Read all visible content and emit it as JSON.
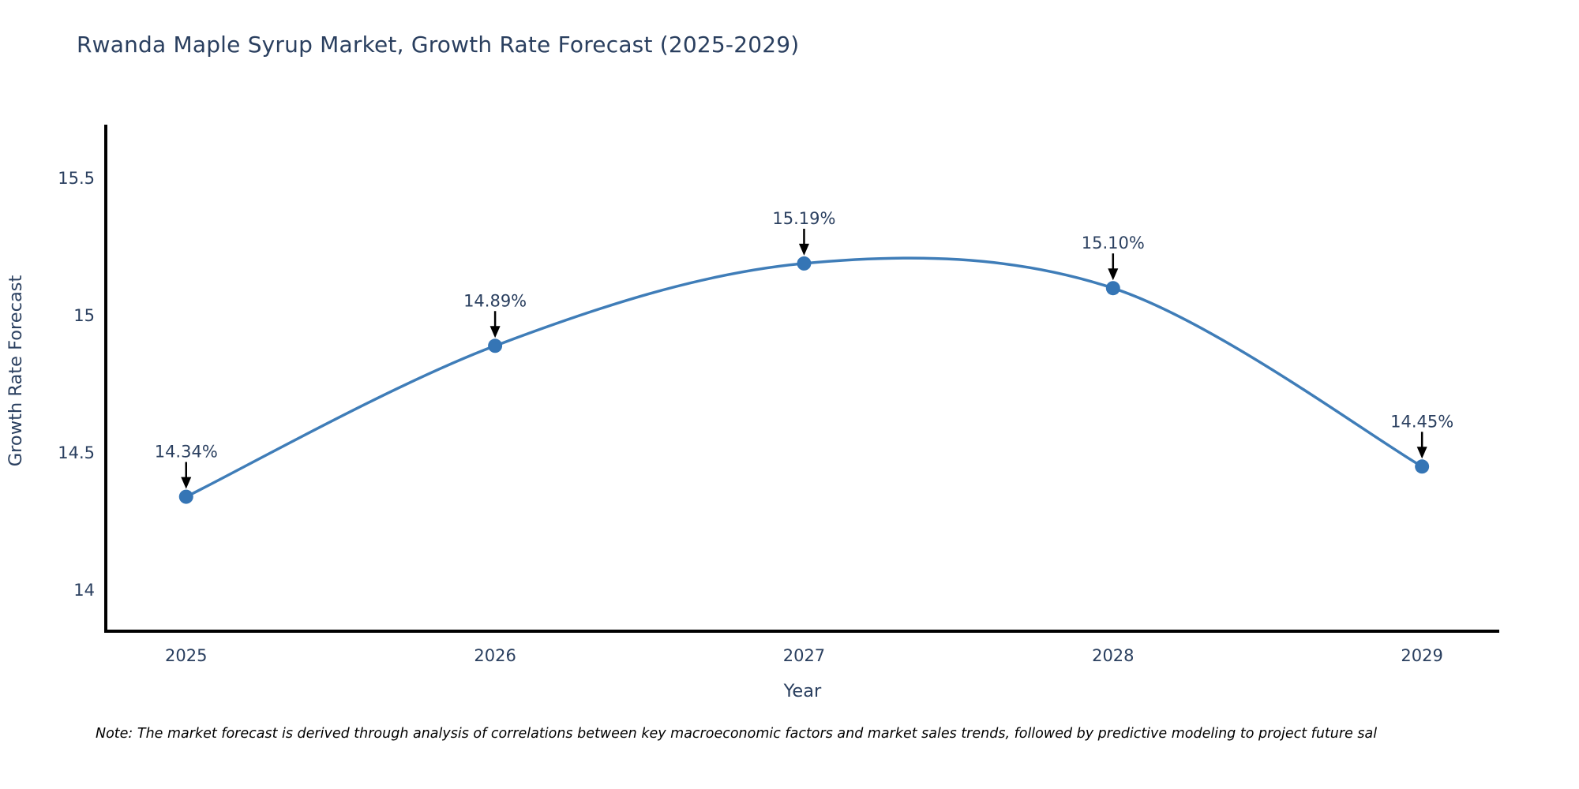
{
  "header": {
    "title": "Rwanda Maple Syrup Market, Growth Rate Forecast (2025-2029)"
  },
  "note": "Note: The market forecast is derived through analysis of correlations between key macroeconomic factors and market sales trends, followed by predictive modeling to project future sal",
  "chart_data": {
    "type": "line",
    "title": "Rwanda Maple Syrup Market, Growth Rate Forecast (2025-2029)",
    "x": [
      2025,
      2026,
      2027,
      2028,
      2029
    ],
    "values": [
      14.34,
      14.89,
      15.19,
      15.1,
      14.45
    ],
    "point_labels": [
      "14.34%",
      "14.89%",
      "15.19%",
      "15.10%",
      "14.45%"
    ],
    "xticks": [
      "2025",
      "2026",
      "2027",
      "2028",
      "2029"
    ],
    "yticks": [
      14,
      14.5,
      15,
      15.5
    ],
    "ytick_labels": [
      "14",
      "14.5",
      "15",
      "15.5"
    ],
    "xlabel": "Year",
    "ylabel": "Growth Rate Forecast",
    "xlim": [
      2024.74,
      2029.25
    ],
    "ylim": [
      13.85,
      15.69
    ],
    "line_shape": "spline",
    "grid": false,
    "legend": "none",
    "colors": {
      "line": "#3f7db8",
      "marker": "#3575b5",
      "axis": "#000000",
      "text": "#2a3f5f",
      "arrow": "#000000"
    }
  }
}
